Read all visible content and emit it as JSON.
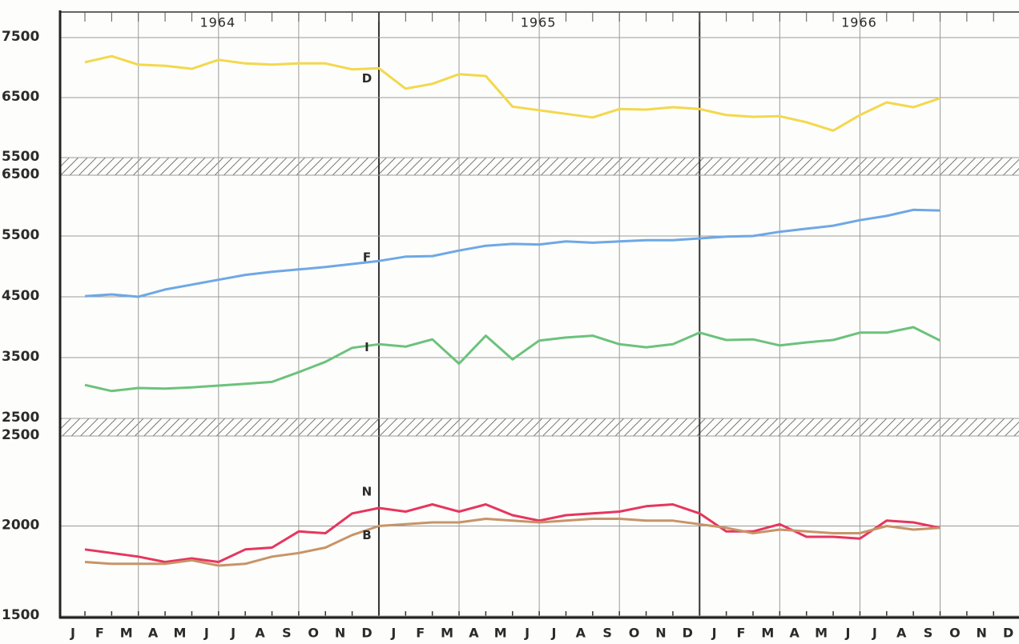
{
  "chart_data": [
    {
      "type": "line",
      "year_labels": [
        "1964",
        "1965",
        "1966"
      ],
      "ylim": [
        5500,
        7900
      ],
      "yticks": [
        5500,
        6500,
        7500
      ],
      "grid": true,
      "series": [
        {
          "name": "D",
          "color": "#f3d84c",
          "values": [
            7090,
            7190,
            7050,
            7030,
            6980,
            7130,
            7070,
            7050,
            7070,
            7070,
            6970,
            6990,
            6650,
            6730,
            6890,
            6860,
            6350,
            6290,
            6230,
            6170,
            6310,
            6300,
            6340,
            6310,
            6210,
            6180,
            6190,
            6090,
            5950,
            6210,
            6420,
            6340,
            6490,
            null,
            null,
            null
          ]
        }
      ]
    },
    {
      "type": "line",
      "ylim": [
        2500,
        6500
      ],
      "yticks": [
        2500,
        3500,
        4500,
        5500,
        6500
      ],
      "grid": true,
      "series": [
        {
          "name": "F",
          "color": "#6ea8e6",
          "values": [
            4510,
            4540,
            4500,
            4620,
            4700,
            4780,
            4860,
            4910,
            4950,
            4990,
            5040,
            5090,
            5160,
            5170,
            5260,
            5340,
            5370,
            5360,
            5410,
            5390,
            5410,
            5430,
            5430,
            5460,
            5490,
            5500,
            5570,
            5620,
            5670,
            5760,
            5830,
            5930,
            5920,
            null,
            null,
            null
          ]
        },
        {
          "name": "I",
          "color": "#6cc27c",
          "values": [
            3050,
            2950,
            3000,
            2990,
            3010,
            3040,
            3070,
            3100,
            3260,
            3430,
            3660,
            3720,
            3680,
            3800,
            3400,
            3860,
            3470,
            3780,
            3830,
            3860,
            3720,
            3670,
            3720,
            3910,
            3790,
            3800,
            3700,
            3750,
            3790,
            3910,
            3910,
            4000,
            3780,
            null,
            null,
            null
          ]
        }
      ]
    },
    {
      "type": "line",
      "categories": [
        "J",
        "F",
        "M",
        "A",
        "M",
        "J",
        "J",
        "A",
        "S",
        "O",
        "N",
        "D",
        "J",
        "F",
        "M",
        "A",
        "M",
        "J",
        "J",
        "A",
        "S",
        "O",
        "N",
        "D",
        "J",
        "F",
        "M",
        "A",
        "M",
        "J",
        "J",
        "A",
        "S",
        "O",
        "N",
        "D"
      ],
      "ylim": [
        1500,
        2500
      ],
      "yticks": [
        1500,
        2000,
        2500
      ],
      "grid": true,
      "series": [
        {
          "name": "N",
          "color": "#e6365e",
          "values": [
            1870,
            1850,
            1830,
            1800,
            1820,
            1800,
            1870,
            1880,
            1970,
            1960,
            2070,
            2100,
            2080,
            2120,
            2080,
            2120,
            2060,
            2030,
            2060,
            2070,
            2080,
            2110,
            2120,
            2070,
            1970,
            1970,
            2010,
            1940,
            1940,
            1930,
            2030,
            2020,
            1990,
            null,
            null,
            null
          ]
        },
        {
          "name": "B",
          "color": "#c79468",
          "values": [
            1800,
            1790,
            1790,
            1790,
            1810,
            1780,
            1790,
            1830,
            1850,
            1880,
            1950,
            2000,
            2010,
            2020,
            2020,
            2040,
            2030,
            2020,
            2030,
            2040,
            2040,
            2030,
            2030,
            2010,
            1990,
            1960,
            1980,
            1970,
            1960,
            1960,
            2000,
            1980,
            1990,
            null,
            null,
            null
          ]
        }
      ]
    }
  ]
}
